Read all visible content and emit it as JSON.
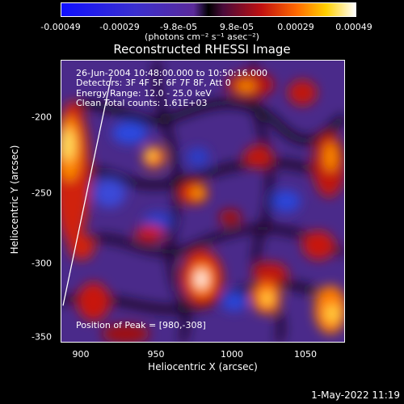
{
  "colorbar": {
    "tick_labels": [
      "-0.00049",
      "-0.00029",
      "-9.8e-05",
      "9.8e-05",
      "0.00029",
      "0.00049"
    ],
    "unit": "(photons cm⁻² s⁻¹ asec⁻²)"
  },
  "title": "Reconstructed RHESSI Image",
  "info": {
    "time_range": "26-Jun-2004 10:48:00.000 to 10:50:16.000",
    "detectors": "Detectors: 3F 4F 5F 6F 7F 8F, Att 0",
    "energy_range": "Energy Range: 12.0 - 25.0 keV",
    "clean": "Clean    Total counts: 1.61E+03",
    "peak": "Position of Peak = [980,-308]"
  },
  "axes": {
    "x_title": "Heliocentric X (arcsec)",
    "y_title": "Heliocentric Y (arcsec)",
    "x_ticks": [
      "900",
      "950",
      "1000",
      "1050"
    ],
    "y_ticks": [
      "-200",
      "-250",
      "-300",
      "-350"
    ]
  },
  "footer": "1-May-2022 11:19",
  "colors": {
    "background": "#000000",
    "text": "#ffffff"
  }
}
